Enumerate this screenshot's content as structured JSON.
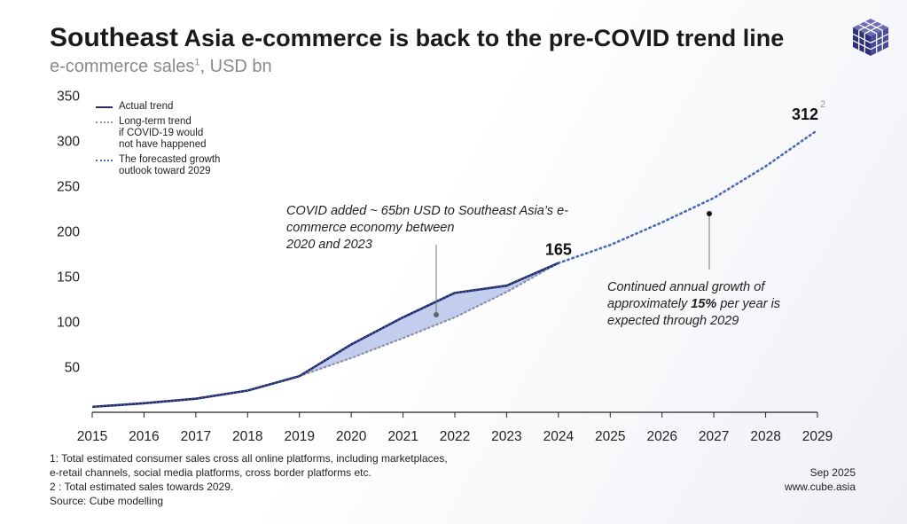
{
  "header": {
    "title_part1": "Southeast",
    "title_part2": "Asia e-commerce is back to the pre-COVID trend line",
    "subtitle": "e-commerce sales",
    "subtitle_sup": "1",
    "subtitle_suffix": ", USD bn"
  },
  "legend": {
    "actual_label": "Actual trend",
    "longterm_lines": [
      "Long-term trend",
      "if COVID-19 would",
      "not have happened"
    ],
    "forecast_lines": [
      "The forecasted growth",
      "outlook toward 2029"
    ]
  },
  "annotations": {
    "covid_lines": [
      "COVID added ~ 65bn USD to Southeast Asia’s e-",
      "commerce economy between",
      "2020 and 2023"
    ],
    "growth_line1": "Continued annual growth of",
    "growth_line2_pre": "approximately ",
    "growth_line2_bold": "15%",
    "growth_line2_post": " per year is",
    "growth_line3": "expected through 2029"
  },
  "footnotes": [
    "1: Total estimated consumer sales cross all online platforms, including marketplaces,",
    "e-retail channels, social media platforms, cross border platforms etc.",
    "2 : Total estimated sales towards 2029.",
    "Source: Cube modelling"
  ],
  "date_info": {
    "date": "Sep  2025",
    "website": "www.cube.asia"
  },
  "colors": {
    "actual": "#1e2a6e",
    "longterm": "#8a8fa8",
    "forecast": "#4a68b8",
    "fill": "#b8c4ea"
  },
  "chart_data": {
    "type": "line",
    "x": [
      2015,
      2016,
      2017,
      2018,
      2019,
      2020,
      2021,
      2022,
      2023,
      2024,
      2025,
      2026,
      2027,
      2028,
      2029
    ],
    "xlim": [
      2015,
      2029
    ],
    "ylim": [
      0,
      350
    ],
    "yticks": [
      50,
      100,
      150,
      200,
      250,
      300,
      350
    ],
    "series": [
      {
        "name": "Actual trend",
        "x": [
          2015,
          2016,
          2017,
          2018,
          2019,
          2020,
          2021,
          2022,
          2023,
          2024
        ],
        "values": [
          6,
          10,
          15,
          24,
          40,
          75,
          105,
          132,
          140,
          165
        ]
      },
      {
        "name": "Long-term trend if COVID-19 would not have happened",
        "x": [
          2019,
          2020,
          2021,
          2022,
          2023,
          2024
        ],
        "values": [
          40,
          60,
          82,
          105,
          133,
          165
        ]
      },
      {
        "name": "The forecasted growth outlook toward 2029",
        "x": [
          2024,
          2025,
          2026,
          2027,
          2028,
          2029
        ],
        "values": [
          165,
          185,
          210,
          237,
          272,
          312
        ]
      }
    ],
    "data_labels": [
      {
        "x": 2024,
        "y": 165,
        "text": "165"
      },
      {
        "x": 2029,
        "y": 312,
        "text": "312",
        "sup": "2"
      }
    ]
  }
}
